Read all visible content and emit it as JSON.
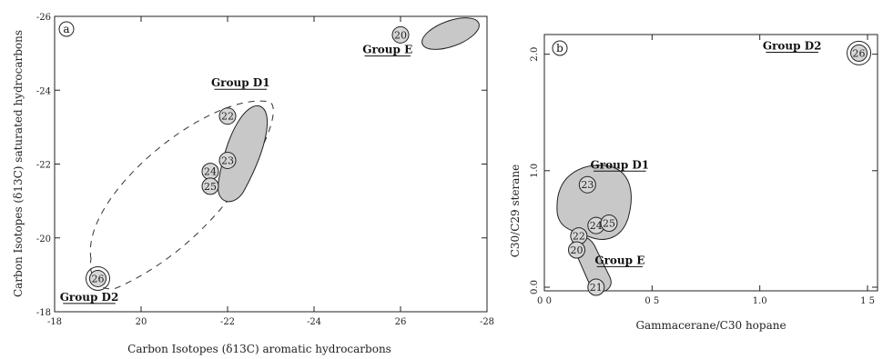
{
  "chart_data": [
    {
      "type": "scatter",
      "panel_label": "a",
      "xlabel": "Carbon Isotopes (δ13C) aromatic hydrocarbons",
      "ylabel": "Carbon Isotopes (δ13C) saturated hydrocarbons",
      "xlim": [
        -18,
        -28
      ],
      "ylim": [
        -18,
        -26
      ],
      "xticks": [
        "-18",
        "20",
        "-22",
        "-24",
        "26",
        "-28"
      ],
      "yticks": [
        "-18",
        "-20",
        "-22",
        "-24",
        "-26"
      ],
      "points": [
        {
          "label": "20",
          "x": -26.0,
          "y": -25.5,
          "group": "E"
        },
        {
          "label": "22",
          "x": -22.0,
          "y": -23.3,
          "group": "D1"
        },
        {
          "label": "23",
          "x": -22.0,
          "y": -22.1,
          "group": "D1"
        },
        {
          "label": "24",
          "x": -21.6,
          "y": -21.8,
          "group": "D1"
        },
        {
          "label": "25",
          "x": -21.6,
          "y": -21.4,
          "group": "D1"
        },
        {
          "label": "26",
          "x": -19.0,
          "y": -18.9,
          "group": "D2"
        }
      ],
      "groups": [
        {
          "name": "Group D1",
          "x": -22.3,
          "y": -24.1
        },
        {
          "name": "Group E",
          "x": -25.7,
          "y": -25.0
        },
        {
          "name": "Group D2",
          "x": -18.8,
          "y": -18.3
        }
      ]
    },
    {
      "type": "scatter",
      "panel_label": "b",
      "xlabel": "Gammacerane/C30 hopane",
      "ylabel": "C30/C29 sterane",
      "xlim": [
        0,
        1.5
      ],
      "ylim": [
        0,
        2.2
      ],
      "xticks": [
        "0 0",
        "0 5",
        "1.0",
        "1 5"
      ],
      "yticks": [
        "0.0",
        "1.0",
        "2.0"
      ],
      "points": [
        {
          "label": "26",
          "x": 1.46,
          "y": 2.01,
          "group": "D2"
        },
        {
          "label": "23",
          "x": 0.2,
          "y": 0.88,
          "group": "D1"
        },
        {
          "label": "24",
          "x": 0.24,
          "y": 0.53,
          "group": "D1"
        },
        {
          "label": "25",
          "x": 0.3,
          "y": 0.55,
          "group": "D1"
        },
        {
          "label": "22",
          "x": 0.16,
          "y": 0.44,
          "group": "D1"
        },
        {
          "label": "20",
          "x": 0.15,
          "y": 0.32,
          "group": "E"
        },
        {
          "label": "21",
          "x": 0.24,
          "y": 0.0,
          "group": "E"
        }
      ],
      "groups": [
        {
          "name": "Group D2",
          "x": 1.15,
          "y": 2.04
        },
        {
          "name": "Group D1",
          "x": 0.35,
          "y": 1.02
        },
        {
          "name": "Group E",
          "x": 0.35,
          "y": 0.2
        }
      ]
    }
  ],
  "colors": {
    "fill": "#c8c8c8",
    "line": "#222222"
  }
}
